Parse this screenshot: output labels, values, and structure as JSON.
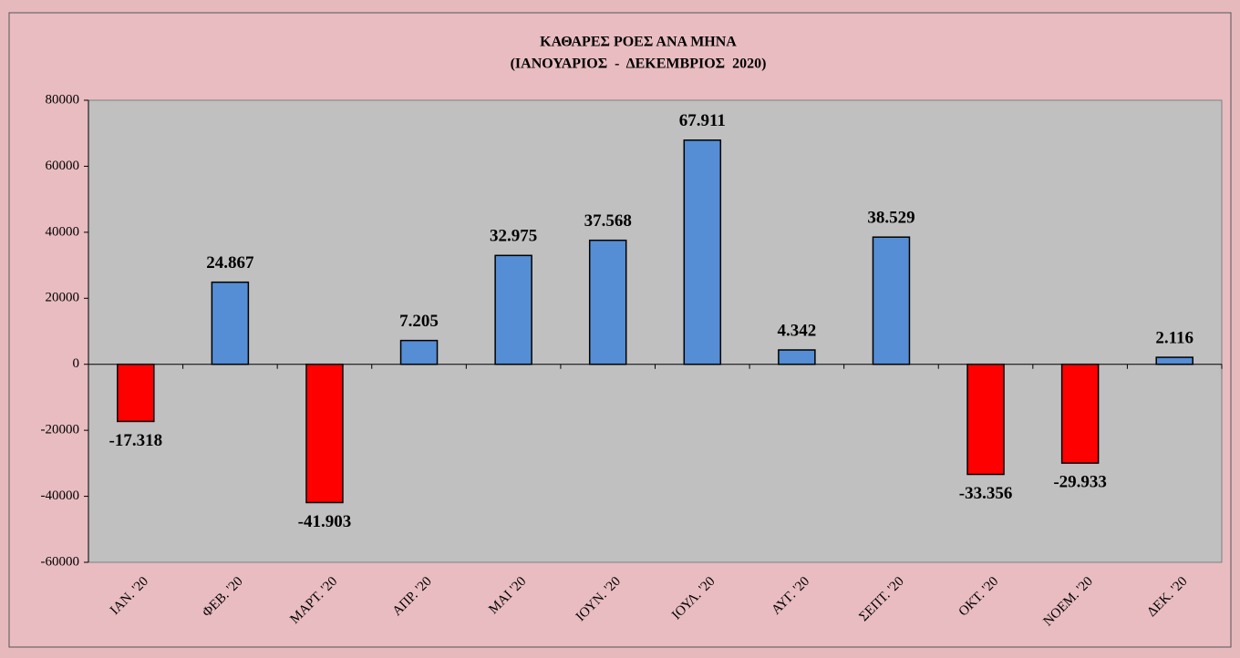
{
  "chart_data": {
    "type": "bar",
    "title": "ΚΑΘΑΡΕΣ ΡΟΕΣ ΑΝΑ ΜΗΝΑ",
    "subtitle": "(ΙΑΝΟΥΑΡΙΟΣ  -  ΔΕΚΕΜΒΡΙΟΣ  2020)",
    "categories": [
      "ΙΑΝ. '20",
      "ΦΕΒ. '20",
      "ΜΑΡΤ. '20",
      "ΑΠΡ. '20",
      "ΜΑΙ '20",
      "ΙΟΥΝ. '20",
      "ΙΟΥΛ. '20",
      "ΑΥΓ. '20",
      "ΣΕΠΤ. '20",
      "ΟΚΤ. '20",
      "ΝΟΕΜ. '20",
      "ΔΕΚ. '20"
    ],
    "values": [
      -17318,
      24867,
      -41903,
      7205,
      32975,
      37568,
      67911,
      4342,
      38529,
      -33356,
      -29933,
      2116
    ],
    "value_labels": [
      "-17.318",
      "24.867",
      "-41.903",
      "7.205",
      "32.975",
      "37.568",
      "67.911",
      "4.342",
      "38.529",
      "-33.356",
      "-29.933",
      "2.116"
    ],
    "colors": [
      "#ff0000",
      "#558ed5",
      "#ff0000",
      "#558ed5",
      "#558ed5",
      "#558ed5",
      "#558ed5",
      "#558ed5",
      "#558ed5",
      "#ff0000",
      "#ff0000",
      "#558ed5"
    ],
    "ylim": [
      -60000,
      80000
    ],
    "yticks": [
      -60000,
      -40000,
      -20000,
      0,
      20000,
      40000,
      60000,
      80000
    ]
  }
}
